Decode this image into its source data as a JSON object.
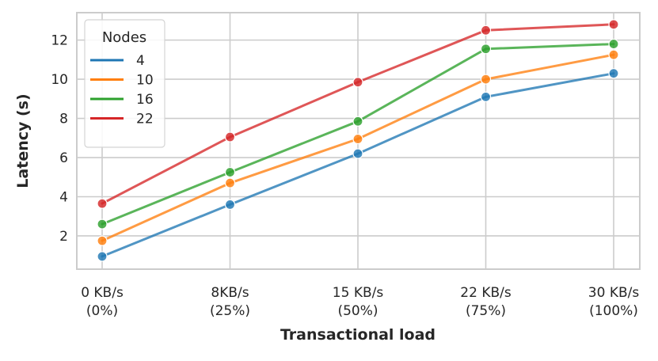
{
  "chart_data": {
    "type": "line",
    "xlabel": "Transactional load",
    "ylabel": "Latency (s)",
    "categories": [
      [
        "0 KB/s",
        "(0%)"
      ],
      [
        "8KB/s",
        "(25%)"
      ],
      [
        "15 KB/s",
        "(50%)"
      ],
      [
        "22 KB/s",
        "(75%)"
      ],
      [
        "30 KB/s",
        "(100%)"
      ]
    ],
    "yticks": [
      2,
      4,
      6,
      8,
      10,
      12
    ],
    "ylim": [
      0.3,
      13.4
    ],
    "grid": true,
    "legend": {
      "title": "Nodes",
      "placement": "top-left"
    },
    "series": [
      {
        "name": "4",
        "color": "#1f77b4",
        "values": [
          0.95,
          3.6,
          6.2,
          9.1,
          10.3
        ]
      },
      {
        "name": "10",
        "color": "#ff7f0e",
        "values": [
          1.75,
          4.7,
          6.95,
          10.0,
          11.25
        ]
      },
      {
        "name": "16",
        "color": "#2ca02c",
        "values": [
          2.6,
          5.25,
          7.85,
          11.55,
          11.8
        ]
      },
      {
        "name": "22",
        "color": "#d62728",
        "values": [
          3.65,
          7.05,
          9.85,
          12.5,
          12.8
        ]
      }
    ]
  }
}
